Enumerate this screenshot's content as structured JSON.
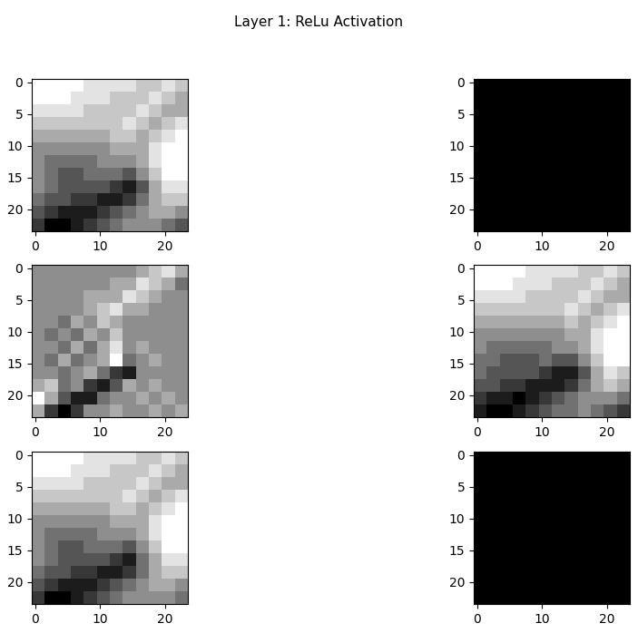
{
  "title": "Layer 1: ReLu Activation",
  "chart_data": [
    {
      "type": "image",
      "color": "gray",
      "xlim": [
        -0.5,
        23.5
      ],
      "ylim": [
        23.5,
        -0.5
      ],
      "xticks": [
        0,
        10,
        20
      ],
      "yticks": [
        0,
        5,
        10,
        15,
        20
      ],
      "cells": [
        [
          9,
          9,
          9,
          9,
          8,
          8,
          8,
          8,
          7,
          7,
          8,
          7
        ],
        [
          9,
          9,
          9,
          8,
          8,
          8,
          7,
          7,
          7,
          8,
          7,
          6
        ],
        [
          8,
          8,
          8,
          8,
          7,
          7,
          7,
          7,
          8,
          7,
          6,
          6
        ],
        [
          7,
          7,
          7,
          7,
          7,
          7,
          7,
          8,
          7,
          6,
          7,
          8
        ],
        [
          6,
          6,
          6,
          6,
          6,
          6,
          7,
          7,
          6,
          7,
          8,
          9
        ],
        [
          5,
          5,
          5,
          5,
          5,
          5,
          6,
          6,
          6,
          8,
          9,
          9
        ],
        [
          5,
          4,
          4,
          4,
          4,
          5,
          5,
          5,
          6,
          8,
          9,
          9
        ],
        [
          5,
          4,
          3,
          3,
          4,
          4,
          4,
          3,
          5,
          7,
          9,
          9
        ],
        [
          5,
          4,
          3,
          3,
          3,
          3,
          2,
          1,
          3,
          6,
          8,
          8
        ],
        [
          4,
          3,
          3,
          2,
          2,
          1,
          1,
          2,
          4,
          6,
          7,
          7
        ],
        [
          3,
          2,
          1,
          1,
          1,
          2,
          3,
          4,
          5,
          6,
          6,
          5
        ],
        [
          2,
          0,
          0,
          1,
          2,
          3,
          4,
          5,
          5,
          5,
          4,
          3
        ]
      ]
    },
    {
      "type": "image",
      "color": "gray",
      "xlim": [
        -0.5,
        23.5
      ],
      "ylim": [
        23.5,
        -0.5
      ],
      "xticks": [
        0,
        10,
        20
      ],
      "yticks": [
        0,
        5,
        10,
        15,
        20
      ],
      "cells": [
        [
          0,
          0,
          0,
          0,
          0,
          0,
          0,
          0,
          0,
          0,
          0,
          0
        ],
        [
          0,
          0,
          0,
          0,
          0,
          0,
          0,
          0,
          0,
          0,
          0,
          0
        ],
        [
          0,
          0,
          0,
          0,
          0,
          0,
          0,
          0,
          0,
          0,
          0,
          0
        ],
        [
          0,
          0,
          0,
          0,
          0,
          0,
          0,
          0,
          0,
          0,
          0,
          0
        ],
        [
          0,
          0,
          0,
          0,
          0,
          0,
          0,
          0,
          0,
          0,
          0,
          0
        ],
        [
          0,
          0,
          0,
          0,
          0,
          0,
          0,
          0,
          0,
          0,
          0,
          0
        ],
        [
          0,
          0,
          0,
          0,
          0,
          0,
          0,
          0,
          0,
          0,
          0,
          0
        ],
        [
          0,
          0,
          0,
          0,
          0,
          0,
          0,
          0,
          0,
          0,
          0,
          0
        ],
        [
          0,
          0,
          0,
          0,
          0,
          0,
          0,
          0,
          0,
          0,
          0,
          0
        ],
        [
          0,
          0,
          0,
          0,
          0,
          0,
          0,
          0,
          0,
          0,
          0,
          0
        ],
        [
          0,
          0,
          0,
          0,
          0,
          0,
          0,
          0,
          0,
          0,
          0,
          0
        ],
        [
          0,
          0,
          0,
          0,
          0,
          0,
          0,
          0,
          0,
          0,
          0,
          0
        ]
      ]
    },
    {
      "type": "image",
      "color": "gray",
      "xlim": [
        -0.5,
        23.5
      ],
      "ylim": [
        23.5,
        -0.5
      ],
      "xticks": [
        0,
        10,
        20
      ],
      "yticks": [
        0,
        5,
        10,
        15,
        20
      ],
      "cells": [
        [
          5,
          5,
          5,
          5,
          5,
          5,
          5,
          5,
          6,
          7,
          8,
          6
        ],
        [
          5,
          5,
          5,
          5,
          5,
          5,
          6,
          6,
          8,
          7,
          6,
          4
        ],
        [
          5,
          5,
          5,
          5,
          6,
          6,
          6,
          8,
          7,
          6,
          5,
          5
        ],
        [
          5,
          5,
          5,
          5,
          6,
          7,
          8,
          6,
          6,
          5,
          5,
          5
        ],
        [
          5,
          5,
          4,
          6,
          5,
          7,
          6,
          5,
          5,
          5,
          5,
          5
        ],
        [
          5,
          4,
          5,
          4,
          6,
          5,
          7,
          5,
          5,
          5,
          5,
          5
        ],
        [
          5,
          5,
          4,
          6,
          4,
          6,
          8,
          5,
          6,
          5,
          5,
          5
        ],
        [
          5,
          4,
          6,
          4,
          5,
          6,
          9,
          4,
          5,
          6,
          5,
          5
        ],
        [
          5,
          5,
          4,
          5,
          6,
          4,
          2,
          1,
          5,
          5,
          5,
          5
        ],
        [
          6,
          7,
          4,
          5,
          2,
          1,
          3,
          6,
          5,
          6,
          5,
          5
        ],
        [
          9,
          6,
          3,
          1,
          1,
          4,
          5,
          5,
          6,
          5,
          6,
          5
        ],
        [
          6,
          2,
          0,
          2,
          5,
          5,
          6,
          5,
          5,
          6,
          5,
          6
        ]
      ]
    },
    {
      "type": "image",
      "color": "gray",
      "xlim": [
        -0.5,
        23.5
      ],
      "ylim": [
        23.5,
        -0.5
      ],
      "xticks": [
        0,
        10,
        20
      ],
      "yticks": [
        0,
        5,
        10,
        15,
        20
      ],
      "cells": [
        [
          9,
          9,
          9,
          9,
          8,
          8,
          8,
          8,
          7,
          7,
          8,
          7
        ],
        [
          9,
          9,
          9,
          8,
          8,
          8,
          7,
          7,
          7,
          8,
          7,
          6
        ],
        [
          8,
          8,
          8,
          8,
          7,
          7,
          7,
          7,
          8,
          7,
          6,
          6
        ],
        [
          7,
          7,
          7,
          7,
          7,
          7,
          7,
          8,
          7,
          6,
          7,
          8
        ],
        [
          6,
          6,
          6,
          6,
          6,
          6,
          6,
          7,
          6,
          7,
          8,
          9
        ],
        [
          5,
          5,
          5,
          5,
          5,
          5,
          5,
          6,
          6,
          8,
          9,
          9
        ],
        [
          5,
          4,
          4,
          4,
          4,
          4,
          5,
          5,
          6,
          8,
          9,
          9
        ],
        [
          4,
          4,
          3,
          3,
          3,
          4,
          3,
          3,
          5,
          7,
          9,
          9
        ],
        [
          4,
          3,
          3,
          3,
          3,
          2,
          1,
          1,
          3,
          6,
          8,
          7
        ],
        [
          3,
          3,
          2,
          2,
          1,
          1,
          1,
          2,
          4,
          6,
          7,
          6
        ],
        [
          2,
          1,
          1,
          0,
          1,
          2,
          3,
          4,
          5,
          5,
          5,
          4
        ],
        [
          1,
          0,
          0,
          1,
          2,
          3,
          4,
          4,
          5,
          4,
          3,
          2
        ]
      ]
    },
    {
      "type": "image",
      "color": "gray",
      "xlim": [
        -0.5,
        23.5
      ],
      "ylim": [
        23.5,
        -0.5
      ],
      "xticks": [
        0,
        10,
        20
      ],
      "yticks": [
        0,
        5,
        10,
        15,
        20
      ],
      "cells": [
        [
          9,
          9,
          9,
          9,
          8,
          8,
          8,
          8,
          7,
          7,
          8,
          7
        ],
        [
          9,
          9,
          9,
          8,
          8,
          8,
          7,
          7,
          7,
          8,
          7,
          6
        ],
        [
          8,
          8,
          8,
          8,
          7,
          7,
          7,
          7,
          8,
          7,
          6,
          6
        ],
        [
          7,
          7,
          7,
          7,
          7,
          7,
          7,
          8,
          7,
          6,
          7,
          8
        ],
        [
          6,
          6,
          6,
          6,
          6,
          6,
          7,
          7,
          6,
          7,
          8,
          9
        ],
        [
          5,
          5,
          5,
          5,
          5,
          5,
          6,
          6,
          6,
          8,
          9,
          9
        ],
        [
          5,
          4,
          4,
          4,
          4,
          5,
          5,
          5,
          6,
          8,
          9,
          9
        ],
        [
          5,
          4,
          3,
          3,
          4,
          4,
          4,
          3,
          5,
          7,
          9,
          9
        ],
        [
          5,
          4,
          3,
          3,
          3,
          3,
          2,
          1,
          4,
          6,
          8,
          8
        ],
        [
          4,
          3,
          3,
          2,
          2,
          1,
          1,
          2,
          4,
          6,
          7,
          7
        ],
        [
          3,
          2,
          1,
          1,
          1,
          2,
          3,
          4,
          5,
          6,
          6,
          5
        ],
        [
          2,
          0,
          0,
          1,
          2,
          3,
          4,
          5,
          5,
          5,
          5,
          4
        ]
      ]
    },
    {
      "type": "image",
      "color": "gray",
      "xlim": [
        -0.5,
        23.5
      ],
      "ylim": [
        23.5,
        -0.5
      ],
      "xticks": [
        0,
        10,
        20
      ],
      "yticks": [
        0,
        5,
        10,
        15,
        20
      ],
      "cells": [
        [
          0,
          0,
          0,
          0,
          0,
          0,
          0,
          0,
          0,
          0,
          0,
          0
        ],
        [
          0,
          0,
          0,
          0,
          0,
          0,
          0,
          0,
          0,
          0,
          0,
          0
        ],
        [
          0,
          0,
          0,
          0,
          0,
          0,
          0,
          0,
          0,
          0,
          0,
          0
        ],
        [
          0,
          0,
          0,
          0,
          0,
          0,
          0,
          0,
          0,
          0,
          0,
          0
        ],
        [
          0,
          0,
          0,
          0,
          0,
          0,
          0,
          0,
          0,
          0,
          0,
          0
        ],
        [
          0,
          0,
          0,
          0,
          0,
          0,
          0,
          0,
          0,
          0,
          0,
          0
        ],
        [
          0,
          0,
          0,
          0,
          0,
          0,
          0,
          0,
          0,
          0,
          0,
          0
        ],
        [
          0,
          0,
          0,
          0,
          0,
          0,
          0,
          0,
          0,
          0,
          0,
          0
        ],
        [
          0,
          0,
          0,
          0,
          0,
          0,
          0,
          0,
          0,
          0,
          0,
          0
        ],
        [
          0,
          0,
          0,
          0,
          0,
          0,
          0,
          0,
          0,
          0,
          0,
          0
        ],
        [
          0,
          0,
          0,
          0,
          0,
          0,
          0,
          0,
          0,
          0,
          0,
          0
        ],
        [
          0,
          0,
          0,
          0,
          0,
          0,
          0,
          0,
          0,
          0,
          0,
          0
        ]
      ]
    }
  ]
}
